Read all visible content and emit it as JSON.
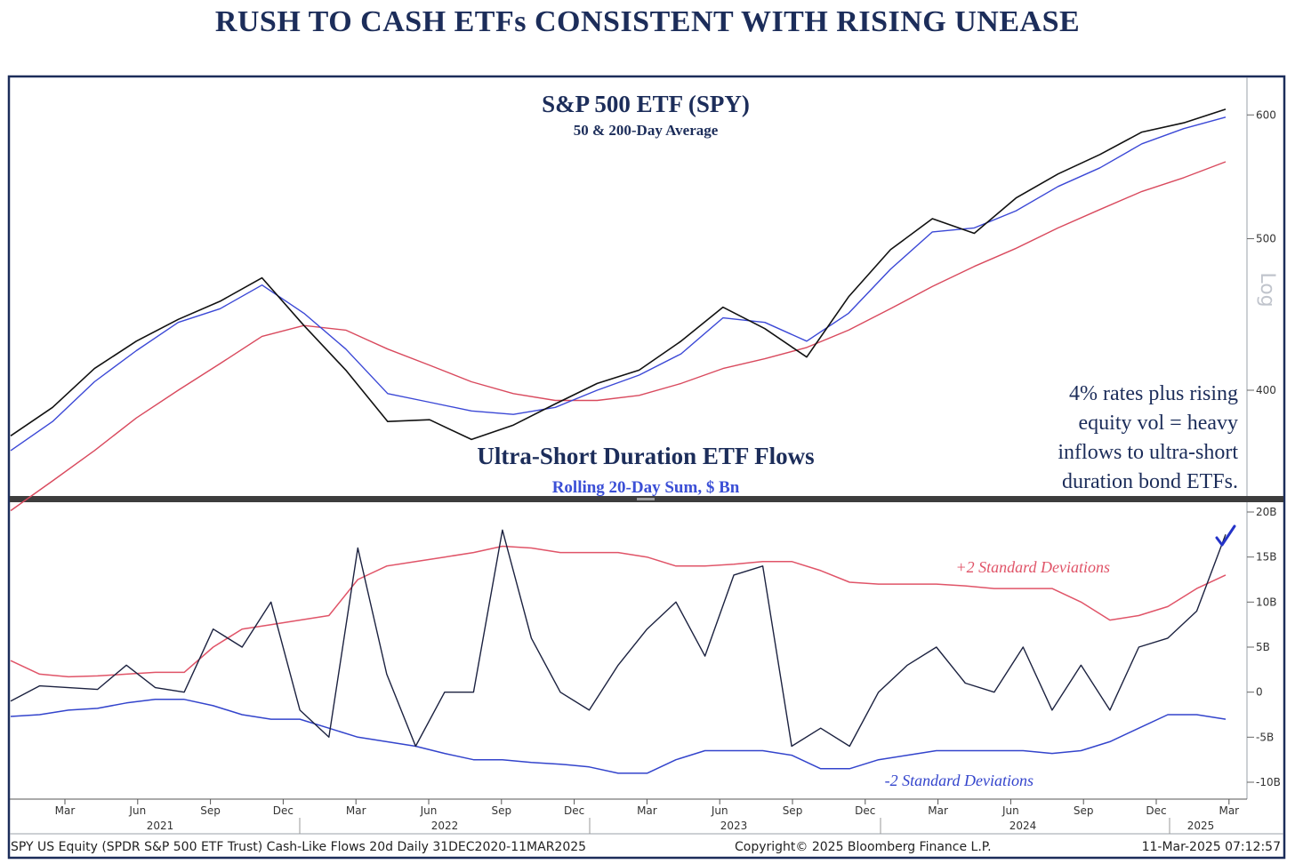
{
  "title": "RUSH TO CASH ETFs CONSISTENT WITH RISING UNEASE",
  "chart_data": [
    {
      "type": "line",
      "title": "S&P 500 ETF (SPY)",
      "subtitle": "50 & 200-Day Average",
      "scale_label": "Log",
      "y_ticks": [
        400,
        500,
        600
      ],
      "ylim": [
        345,
        630
      ],
      "annotation": [
        "4% rates plus rising",
        "equity vol = heavy",
        "inflows to ultra-short",
        "duration bond ETFs."
      ],
      "x": [
        "Jan-2021",
        "Mar-2021",
        "May-2021",
        "Jul-2021",
        "Sep-2021",
        "Nov-2021",
        "Jan-2022",
        "Mar-2022",
        "May-2022",
        "Jul-2022",
        "Sep-2022",
        "Oct-2022",
        "Dec-2022",
        "Feb-2023",
        "Apr-2023",
        "Jun-2023",
        "Jul-2023",
        "Sep-2023",
        "Oct-2023",
        "Dec-2023",
        "Feb-2024",
        "Apr-2024",
        "May-2024",
        "Jul-2024",
        "Aug-2024",
        "Oct-2024",
        "Dec-2024",
        "Jan-2025",
        "Feb-2025",
        "Mar-2025"
      ],
      "series": [
        {
          "name": "SPY",
          "color": "#111111",
          "values": [
            374,
            390,
            413,
            430,
            444,
            456,
            472,
            440,
            412,
            382,
            383,
            372,
            380,
            392,
            404,
            412,
            430,
            452,
            438,
            420,
            459,
            492,
            515,
            504,
            531,
            550,
            566,
            585,
            593,
            605
          ]
        },
        {
          "name": "50-Day Average",
          "color": "#3b48d6",
          "values": [
            366,
            382,
            405,
            424,
            442,
            451,
            467,
            448,
            425,
            398,
            393,
            388,
            386,
            390,
            400,
            409,
            422,
            445,
            442,
            430,
            448,
            478,
            505,
            508,
            521,
            540,
            555,
            575,
            588,
            598
          ]
        },
        {
          "name": "200-Day Average",
          "color": "#d94a5e",
          "values": [
            335,
            350,
            366,
            384,
            400,
            416,
            433,
            440,
            437,
            425,
            415,
            405,
            398,
            394,
            394,
            397,
            404,
            413,
            419,
            426,
            437,
            451,
            466,
            480,
            493,
            508,
            522,
            536,
            547,
            560
          ]
        }
      ]
    },
    {
      "type": "line",
      "title": "Ultra-Short Duration ETF Flows",
      "subtitle": "Rolling 20-Day Sum, $ Bn",
      "y_ticks": [
        "20B",
        "15B",
        "10B",
        "5B",
        "0",
        "-5B",
        "-10B"
      ],
      "y_tick_values": [
        20,
        15,
        10,
        5,
        0,
        -5,
        -10
      ],
      "ylim": [
        -11,
        21
      ],
      "band_labels": {
        "upper": "+2 Standard Deviations",
        "lower": "-2 Standard Deviations"
      },
      "x": [
        "Jan-2021",
        "Mar-2021",
        "May-2021",
        "Jul-2021",
        "Sep-2021",
        "Nov-2021",
        "Jan-2022",
        "Mar-2022",
        "May-2022",
        "Jun-2022",
        "Jul-2022",
        "Aug-2022",
        "Sep-2022",
        "Oct-2022",
        "Nov-2022",
        "Dec-2022",
        "Jan-2023",
        "Feb-2023",
        "Mar-2023",
        "Apr-2023",
        "May-2023",
        "Jun-2023",
        "Jul-2023",
        "Aug-2023",
        "Sep-2023",
        "Oct-2023",
        "Nov-2023",
        "Dec-2023",
        "Jan-2024",
        "Feb-2024",
        "Mar-2024",
        "Apr-2024",
        "May-2024",
        "Jun-2024",
        "Jul-2024",
        "Aug-2024",
        "Sep-2024",
        "Oct-2024",
        "Nov-2024",
        "Dec-2024",
        "Jan-2025",
        "Feb-2025",
        "Mar-2025"
      ],
      "series": [
        {
          "name": "Cash-Like Flows 20d",
          "color": "#1c2240",
          "values": [
            -1,
            0.7,
            0.5,
            0.3,
            3,
            0.5,
            0,
            7,
            5,
            10,
            -2,
            -5,
            16,
            2,
            -6,
            0,
            0,
            18,
            6,
            0,
            -2,
            3,
            7,
            10,
            4,
            13,
            14,
            -6,
            -4,
            -6,
            0,
            3,
            5,
            1,
            0,
            5,
            -2,
            3,
            -2,
            5,
            6,
            9,
            17.5
          ]
        },
        {
          "name": "+2 Standard Deviations",
          "color": "#e05468",
          "values": [
            3.5,
            2,
            1.7,
            1.8,
            2,
            2.2,
            2.2,
            5,
            7,
            7.5,
            8,
            8.5,
            12.5,
            14,
            14.5,
            15,
            15.5,
            16.2,
            16,
            15.5,
            15.5,
            15.5,
            15,
            14,
            14,
            14.2,
            14.5,
            14.5,
            13.5,
            12.2,
            12,
            12,
            12,
            11.8,
            11.5,
            11.5,
            11.5,
            10,
            8,
            8.5,
            9.5,
            11.5,
            13
          ]
        },
        {
          "name": "-2 Standard Deviations",
          "color": "#3344cc",
          "values": [
            -2.7,
            -2.5,
            -2,
            -1.8,
            -1.2,
            -0.8,
            -0.8,
            -1.5,
            -2.5,
            -3,
            -3,
            -4,
            -5,
            -5.5,
            -6,
            -6.8,
            -7.5,
            -7.5,
            -7.8,
            -8,
            -8.3,
            -9,
            -9,
            -7.5,
            -6.5,
            -6.5,
            -6.5,
            -7,
            -8.5,
            -8.5,
            -7.5,
            -7,
            -6.5,
            -6.5,
            -6.5,
            -6.5,
            -6.8,
            -6.5,
            -5.5,
            -4,
            -2.5,
            -2.5,
            -3
          ]
        }
      ]
    }
  ],
  "x_axis": {
    "months": [
      "Mar",
      "Jun",
      "Sep",
      "Dec",
      "Mar",
      "Jun",
      "Sep",
      "Dec",
      "Mar",
      "Jun",
      "Sep",
      "Dec",
      "Mar",
      "Jun",
      "Sep",
      "Dec",
      "Mar"
    ],
    "years": [
      "2021",
      "2022",
      "2023",
      "2024",
      "2025"
    ]
  },
  "footer": {
    "left": "SPY US Equity (SPDR S&P 500 ETF Trust) Cash-Like Flows 20d  Daily 31DEC2020-11MAR2025",
    "center": "Copyright© 2025 Bloomberg Finance L.P.",
    "right": "11-Mar-2025 07:12:57"
  },
  "colors": {
    "navy": "#1c2d5a",
    "blue_label": "#3b4fd6",
    "red_label": "#d94a5e",
    "check": "#2433c8"
  }
}
